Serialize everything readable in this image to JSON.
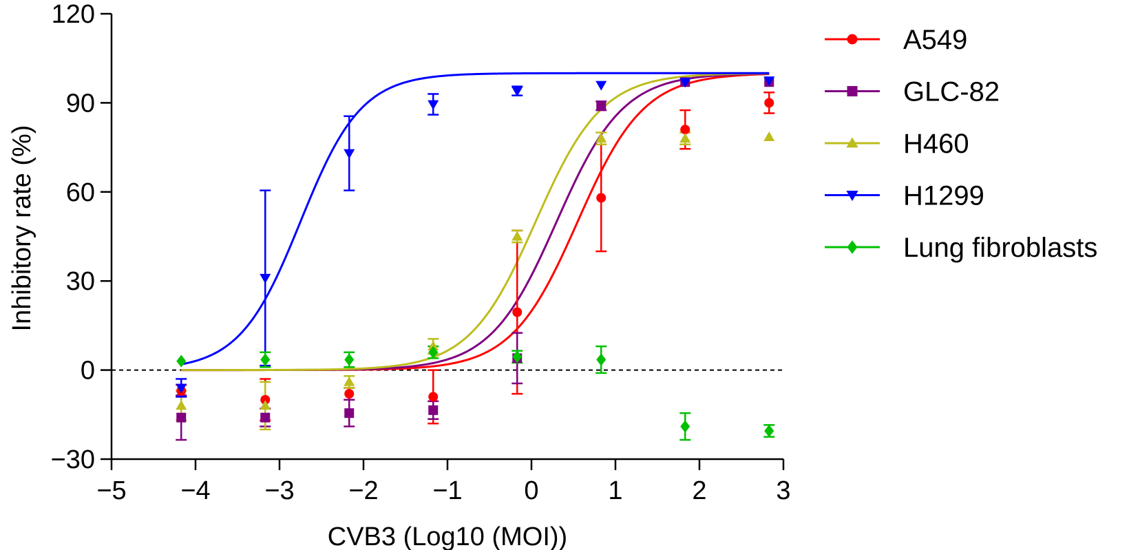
{
  "chart_data": {
    "type": "scatter",
    "title": "",
    "xlabel": "CVB3 (Log10 (MOI))",
    "ylabel": "Inhibitory rate (%)",
    "xlim": [
      -5,
      3
    ],
    "ylim": [
      -30,
      120
    ],
    "x_ticks": [
      -5,
      -4,
      -3,
      -2,
      -1,
      0,
      1,
      2,
      3
    ],
    "x_tick_labels": [
      "−5",
      "−4",
      "−3",
      "−2",
      "−1",
      "0",
      "1",
      "2",
      "3"
    ],
    "y_ticks": [
      -30,
      0,
      30,
      60,
      90,
      120
    ],
    "y_tick_labels": [
      "−30",
      "0",
      "30",
      "60",
      "90",
      "120"
    ],
    "reference_line": {
      "y": 0,
      "style": "dashed"
    },
    "grid": false,
    "legend_position": "right",
    "series": [
      {
        "name": "A549",
        "color": "#ff0000",
        "marker": "circle",
        "fit": {
          "log_ec50": 0.55,
          "hill": 1.1,
          "bottom": 0,
          "top": 100
        },
        "points": [
          {
            "x": -4.17,
            "y": -7,
            "err": 2
          },
          {
            "x": -3.17,
            "y": -10,
            "err": 7
          },
          {
            "x": -2.17,
            "y": -8,
            "err": 2
          },
          {
            "x": -1.17,
            "y": -9,
            "err": 9
          },
          {
            "x": -0.17,
            "y": 19.5,
            "err": 27.5
          },
          {
            "x": 0.83,
            "y": 58,
            "err": 18
          },
          {
            "x": 1.83,
            "y": 81,
            "err": 6.5
          },
          {
            "x": 2.83,
            "y": 90,
            "err": 3.5
          }
        ]
      },
      {
        "name": "GLC-82",
        "color": "#800080",
        "marker": "square",
        "fit": {
          "log_ec50": 0.3,
          "hill": 1.1,
          "bottom": 0,
          "top": 100
        },
        "points": [
          {
            "x": -4.17,
            "y": -16,
            "err": 7.5
          },
          {
            "x": -3.17,
            "y": -16,
            "err": 3
          },
          {
            "x": -2.17,
            "y": -14.5,
            "err": 4.5
          },
          {
            "x": -1.17,
            "y": -13.5,
            "err": 3
          },
          {
            "x": -0.17,
            "y": 4,
            "err": 8.5
          },
          {
            "x": 0.83,
            "y": 89,
            "err": 1.5
          },
          {
            "x": 1.83,
            "y": 97,
            "err": 0
          },
          {
            "x": 2.83,
            "y": 97,
            "err": 0
          }
        ]
      },
      {
        "name": "H460",
        "color": "#bdbd1e",
        "marker": "triangle-up",
        "fit": {
          "log_ec50": 0.05,
          "hill": 1.1,
          "bottom": 0,
          "top": 100
        },
        "points": [
          {
            "x": -4.17,
            "y": -12,
            "err": 5
          },
          {
            "x": -3.17,
            "y": -12,
            "err": 8
          },
          {
            "x": -2.17,
            "y": -4,
            "err": 2
          },
          {
            "x": -1.17,
            "y": 8,
            "err": 2.5
          },
          {
            "x": -0.17,
            "y": 45,
            "err": 2
          },
          {
            "x": 0.83,
            "y": 78,
            "err": 2
          },
          {
            "x": 1.83,
            "y": 78,
            "err": 2
          },
          {
            "x": 2.83,
            "y": 78.5,
            "err": 0
          }
        ]
      },
      {
        "name": "H1299",
        "color": "#0000ff",
        "marker": "triangle-down",
        "fit": {
          "log_ec50": -2.75,
          "hill": 1.2,
          "bottom": 0,
          "top": 100
        },
        "points": [
          {
            "x": -4.17,
            "y": -6,
            "err": 3
          },
          {
            "x": -3.17,
            "y": 31,
            "err": 29.5
          },
          {
            "x": -2.17,
            "y": 73,
            "err": 12.5
          },
          {
            "x": -1.17,
            "y": 89.5,
            "err": 3.5
          },
          {
            "x": -0.17,
            "y": 94,
            "err": 1.5
          },
          {
            "x": 0.83,
            "y": 96,
            "err": 0
          },
          {
            "x": 1.83,
            "y": 97,
            "err": 0
          },
          {
            "x": 2.83,
            "y": 97.5,
            "err": 0
          }
        ]
      },
      {
        "name": "Lung fibroblasts",
        "color": "#00c000",
        "marker": "diamond",
        "fit": null,
        "points": [
          {
            "x": -4.17,
            "y": 3,
            "err": 0
          },
          {
            "x": -3.17,
            "y": 3.5,
            "err": 2.5
          },
          {
            "x": -2.17,
            "y": 3.5,
            "err": 2.5
          },
          {
            "x": -1.17,
            "y": 6,
            "err": 2
          },
          {
            "x": -0.17,
            "y": 4.5,
            "err": 2
          },
          {
            "x": 0.83,
            "y": 3.5,
            "err": 4.5
          },
          {
            "x": 1.83,
            "y": -19,
            "err": 4.5
          },
          {
            "x": 2.83,
            "y": -20.5,
            "err": 2
          }
        ]
      }
    ]
  }
}
